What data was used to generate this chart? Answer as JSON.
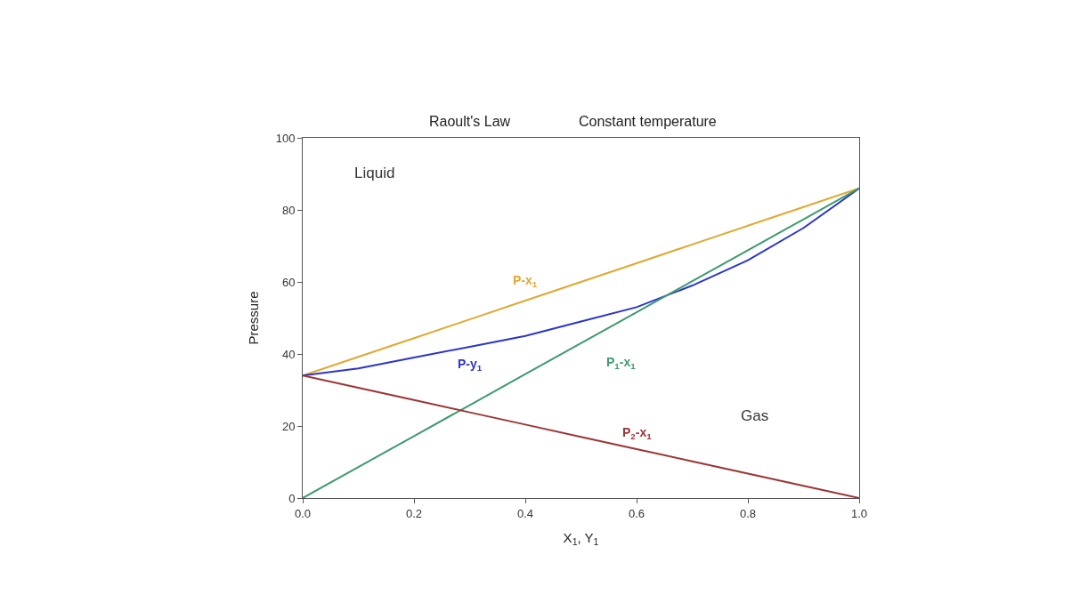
{
  "chart_data": {
    "type": "line",
    "title": "Raoult's Law",
    "subtitle": "Constant temperature",
    "xlabel": "X$_{1}$, Y$_{1}$",
    "ylabel": "Pressure",
    "x": [
      0,
      0.1,
      0.2,
      0.3,
      0.4,
      0.5,
      0.6,
      0.7,
      0.8,
      0.9,
      1.0
    ],
    "series": [
      {
        "name": "P-x$_{1}$",
        "color": "#e0a830",
        "values": [
          34,
          39.2,
          44.4,
          49.6,
          54.8,
          60,
          65.2,
          70.4,
          75.6,
          80.8,
          86
        ]
      },
      {
        "name": "P-y$_{1}$",
        "color": "#2b35c8",
        "values": [
          34,
          36,
          39,
          42,
          45,
          49,
          53,
          59,
          66,
          75,
          86
        ]
      },
      {
        "name": "P$_{1}$-x$_{1}$",
        "color": "#3f9a6e",
        "values": [
          0,
          8.6,
          17.2,
          25.8,
          34.4,
          43,
          51.6,
          60.2,
          68.8,
          77.4,
          86
        ]
      },
      {
        "name": "P$_{2}$-x$_{1}$",
        "color": "#9a3535",
        "values": [
          34,
          30.6,
          27.2,
          23.8,
          20.4,
          17,
          13.6,
          10.2,
          6.8,
          3.4,
          0
        ]
      }
    ],
    "annotations": [
      "Liquid",
      "Gas"
    ],
    "xlim": [
      0,
      1.0
    ],
    "ylim": [
      0,
      100
    ],
    "xticks": [
      {
        "value": 0,
        "label": "0.0"
      },
      0.2,
      0.4,
      0.6,
      0.8,
      {
        "value": 1,
        "label": "1.0"
      }
    ],
    "yticks": [
      0,
      20,
      40,
      60,
      80,
      100
    ],
    "marker": "none",
    "line_style": "solid"
  }
}
